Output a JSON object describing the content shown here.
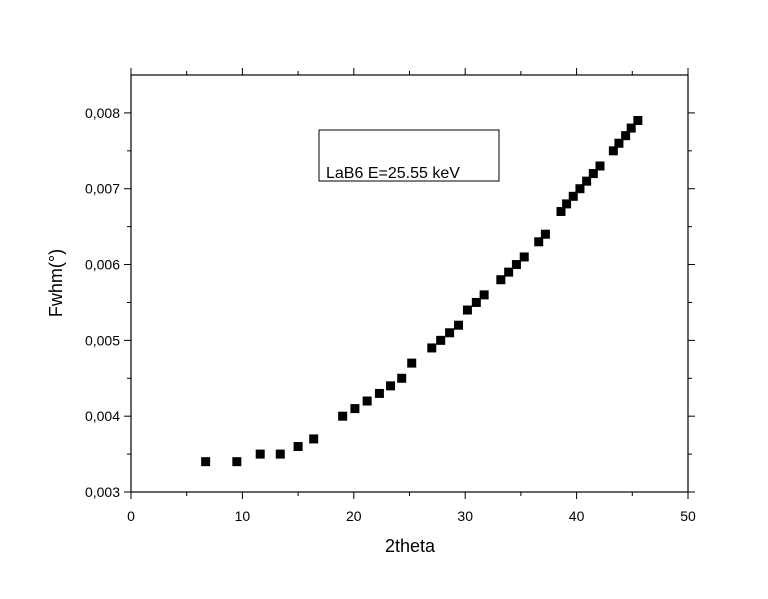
{
  "chart_data": {
    "type": "scatter",
    "xlabel": "2theta",
    "ylabel": "Fwhm(°)",
    "xlim": [
      0,
      50
    ],
    "ylim": [
      0.003,
      0.0085
    ],
    "x_ticks": [
      0,
      10,
      20,
      30,
      40,
      50
    ],
    "x_tick_labels": [
      "0",
      "10",
      "20",
      "30",
      "40",
      "50"
    ],
    "y_ticks": [
      0.003,
      0.004,
      0.005,
      0.006,
      0.007,
      0.008
    ],
    "y_tick_labels": [
      "0,003",
      "0,004",
      "0,005",
      "0,006",
      "0,007",
      "0,008"
    ],
    "annotation": "LaB6 E=25.55 keV",
    "legend_position": "top-center",
    "marker": "square",
    "marker_color": "#000000",
    "grid": false,
    "series": [
      {
        "x": [
          6.7,
          9.5,
          11.6,
          13.4,
          15.0,
          16.4,
          19.0,
          20.1,
          21.2,
          22.3,
          23.3,
          24.3,
          25.2,
          27.0,
          27.8,
          28.6,
          29.4,
          30.2,
          31.0,
          31.7,
          33.2,
          33.9,
          34.6,
          35.3,
          36.6,
          37.2,
          38.6,
          39.1,
          39.7,
          40.3,
          40.9,
          41.5,
          42.1,
          43.3,
          43.8,
          44.4,
          44.9,
          45.5
        ],
        "y": [
          0.0034,
          0.0034,
          0.0035,
          0.0035,
          0.0036,
          0.0037,
          0.004,
          0.0041,
          0.0042,
          0.0043,
          0.0044,
          0.0045,
          0.0047,
          0.0049,
          0.005,
          0.0051,
          0.0052,
          0.0054,
          0.0055,
          0.0056,
          0.0058,
          0.0059,
          0.006,
          0.0061,
          0.0063,
          0.0064,
          0.0067,
          0.0068,
          0.0069,
          0.007,
          0.0071,
          0.0072,
          0.0073,
          0.0075,
          0.0076,
          0.0077,
          0.0078,
          0.0079
        ]
      }
    ]
  }
}
